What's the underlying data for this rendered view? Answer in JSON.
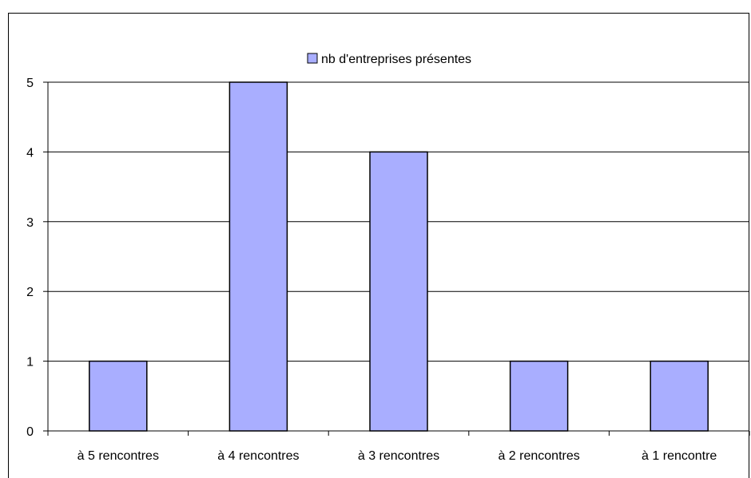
{
  "chart_data": {
    "type": "bar",
    "title": "",
    "xlabel": "",
    "ylabel": "",
    "categories": [
      "à 5 rencontres",
      "à 4 rencontres",
      "à 3 rencontres",
      "à 2 rencontres",
      "à 1 rencontre"
    ],
    "series": [
      {
        "name": "nb d'entreprises présentes",
        "values": [
          1,
          5,
          4,
          1,
          1
        ],
        "color": "#a9aeff"
      }
    ],
    "ylim": [
      0,
      5
    ],
    "yticks": [
      0,
      1,
      2,
      3,
      4,
      5
    ],
    "grid": true,
    "legend_position": "top"
  }
}
